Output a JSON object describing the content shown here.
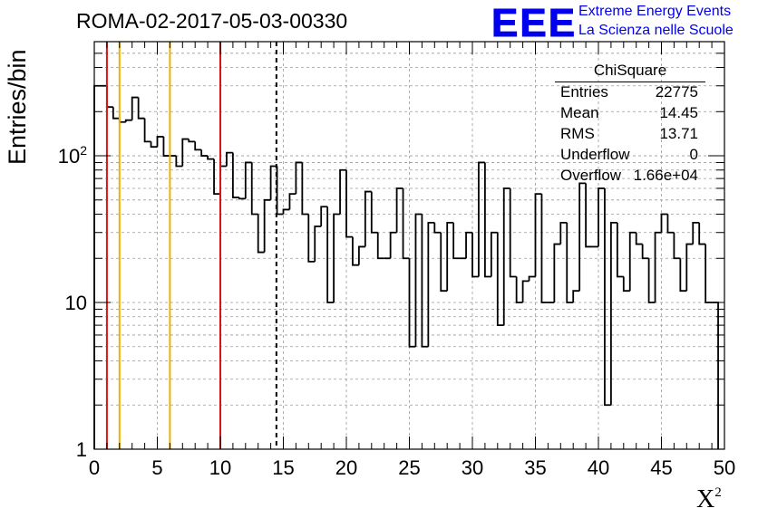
{
  "title": "ROMA-02-2017-05-03-00330",
  "logo": {
    "mark": "EEE",
    "line1": "Extreme Energy Events",
    "line2": "La Scienza nelle Scuole",
    "color": "#0000ee"
  },
  "stats": {
    "title": "ChiSquare",
    "rows": [
      {
        "key": "Entries",
        "value": "22775"
      },
      {
        "key": "Mean",
        "value": "14.45"
      },
      {
        "key": "RMS",
        "value": "13.71"
      },
      {
        "key": "Underflow",
        "value": "0"
      },
      {
        "key": "Overflow",
        "value": "1.66e+04"
      }
    ]
  },
  "chart_data": {
    "type": "histogram",
    "title": "ROMA-02-2017-05-03-00330",
    "xlabel": "X",
    "xlabel_superscript": "2",
    "ylabel": "Entries/bin",
    "xlim": [
      0,
      50
    ],
    "ylim": [
      1,
      600
    ],
    "yscale": "log",
    "grid": true,
    "bin_width": 0.5,
    "x_ticks": [
      0,
      5,
      10,
      15,
      20,
      25,
      30,
      35,
      40,
      45,
      50
    ],
    "x_tick_labels": [
      "0",
      "5",
      "10",
      "15",
      "20",
      "25",
      "30",
      "35",
      "40",
      "45",
      "50"
    ],
    "y_ticks": [
      1,
      10,
      100
    ],
    "y_tick_labels": [
      "1",
      "10",
      "10^2"
    ],
    "values": [
      300,
      300,
      215,
      180,
      170,
      175,
      250,
      180,
      125,
      115,
      135,
      100,
      100,
      85,
      130,
      125,
      110,
      100,
      95,
      55,
      85,
      105,
      52,
      51,
      90,
      40,
      22,
      50,
      85,
      40,
      43,
      55,
      90,
      40,
      19,
      33,
      45,
      10,
      40,
      80,
      28,
      18,
      24,
      57,
      30,
      20,
      20,
      30,
      60,
      20,
      5,
      40,
      5,
      35,
      30,
      12,
      35,
      20,
      20,
      30,
      15,
      90,
      15,
      30,
      7,
      60,
      15,
      10,
      14,
      15,
      55,
      10,
      10,
      25,
      35,
      10,
      12,
      65,
      24,
      24,
      60,
      2,
      35,
      15,
      12,
      30,
      25,
      20,
      10,
      30,
      40,
      30,
      20,
      12,
      25,
      35,
      25,
      10,
      10
    ],
    "vlines": [
      {
        "x": 1,
        "color": "#dd1111",
        "style": "solid"
      },
      {
        "x": 2,
        "color": "#f0b000",
        "style": "solid"
      },
      {
        "x": 6,
        "color": "#f0b000",
        "style": "solid"
      },
      {
        "x": 10,
        "color": "#dd1111",
        "style": "solid"
      },
      {
        "x": 14.45,
        "color": "#000000",
        "style": "dashed"
      }
    ]
  }
}
